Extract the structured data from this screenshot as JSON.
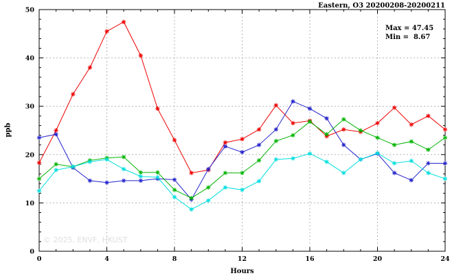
{
  "chart_data": {
    "type": "line",
    "title": "Eastern, O3 20200208-20200211",
    "xlabel": "Hours",
    "ylabel": "ppb",
    "xlim": [
      0,
      24
    ],
    "ylim": [
      0,
      50
    ],
    "xticks": [
      0,
      4,
      8,
      12,
      16,
      20,
      24
    ],
    "yticks": [
      0,
      10,
      20,
      30,
      40,
      50
    ],
    "grid": true,
    "legend": "none",
    "marker": "asterisk",
    "annotations": {
      "max": "Max = 47.45",
      "min": "Min =  8.67"
    },
    "watermark": "© 2025, ENVF, HKUST",
    "x": [
      0,
      1,
      2,
      3,
      4,
      5,
      6,
      7,
      8,
      9,
      10,
      11,
      12,
      13,
      14,
      15,
      16,
      17,
      18,
      19,
      20,
      21,
      22,
      23,
      24
    ],
    "series": [
      {
        "name": "red",
        "color": "#ee0000",
        "values": [
          18.3,
          25.0,
          32.5,
          38.0,
          45.5,
          47.45,
          40.5,
          29.5,
          23.0,
          16.2,
          16.8,
          22.5,
          23.2,
          25.2,
          30.2,
          26.5,
          27.0,
          23.8,
          25.2,
          24.7,
          26.5,
          29.7,
          26.2,
          28.0,
          25.2
        ]
      },
      {
        "name": "blue",
        "color": "#2222cc",
        "values": [
          23.5,
          24.2,
          17.3,
          14.6,
          14.2,
          14.6,
          14.6,
          15.0,
          14.8,
          10.7,
          17.0,
          21.7,
          20.5,
          22.0,
          25.2,
          31.0,
          29.5,
          27.5,
          22.0,
          19.0,
          20.2,
          16.2,
          14.7,
          18.2,
          18.2
        ]
      },
      {
        "name": "green",
        "color": "#00b400",
        "values": [
          15.0,
          18.0,
          17.5,
          18.8,
          19.3,
          19.5,
          16.3,
          16.3,
          12.7,
          11.0,
          13.2,
          16.2,
          16.2,
          18.8,
          22.8,
          24.0,
          26.8,
          24.2,
          27.3,
          25.0,
          23.5,
          22.0,
          22.7,
          21.0,
          23.5
        ]
      },
      {
        "name": "cyan",
        "color": "#00dede",
        "values": [
          12.5,
          16.8,
          17.5,
          18.5,
          19.0,
          17.0,
          15.5,
          15.3,
          11.2,
          8.67,
          10.5,
          13.2,
          12.7,
          14.5,
          19.0,
          19.2,
          20.2,
          18.5,
          16.2,
          19.0,
          20.3,
          18.2,
          18.7,
          16.2,
          15.0
        ]
      }
    ]
  }
}
